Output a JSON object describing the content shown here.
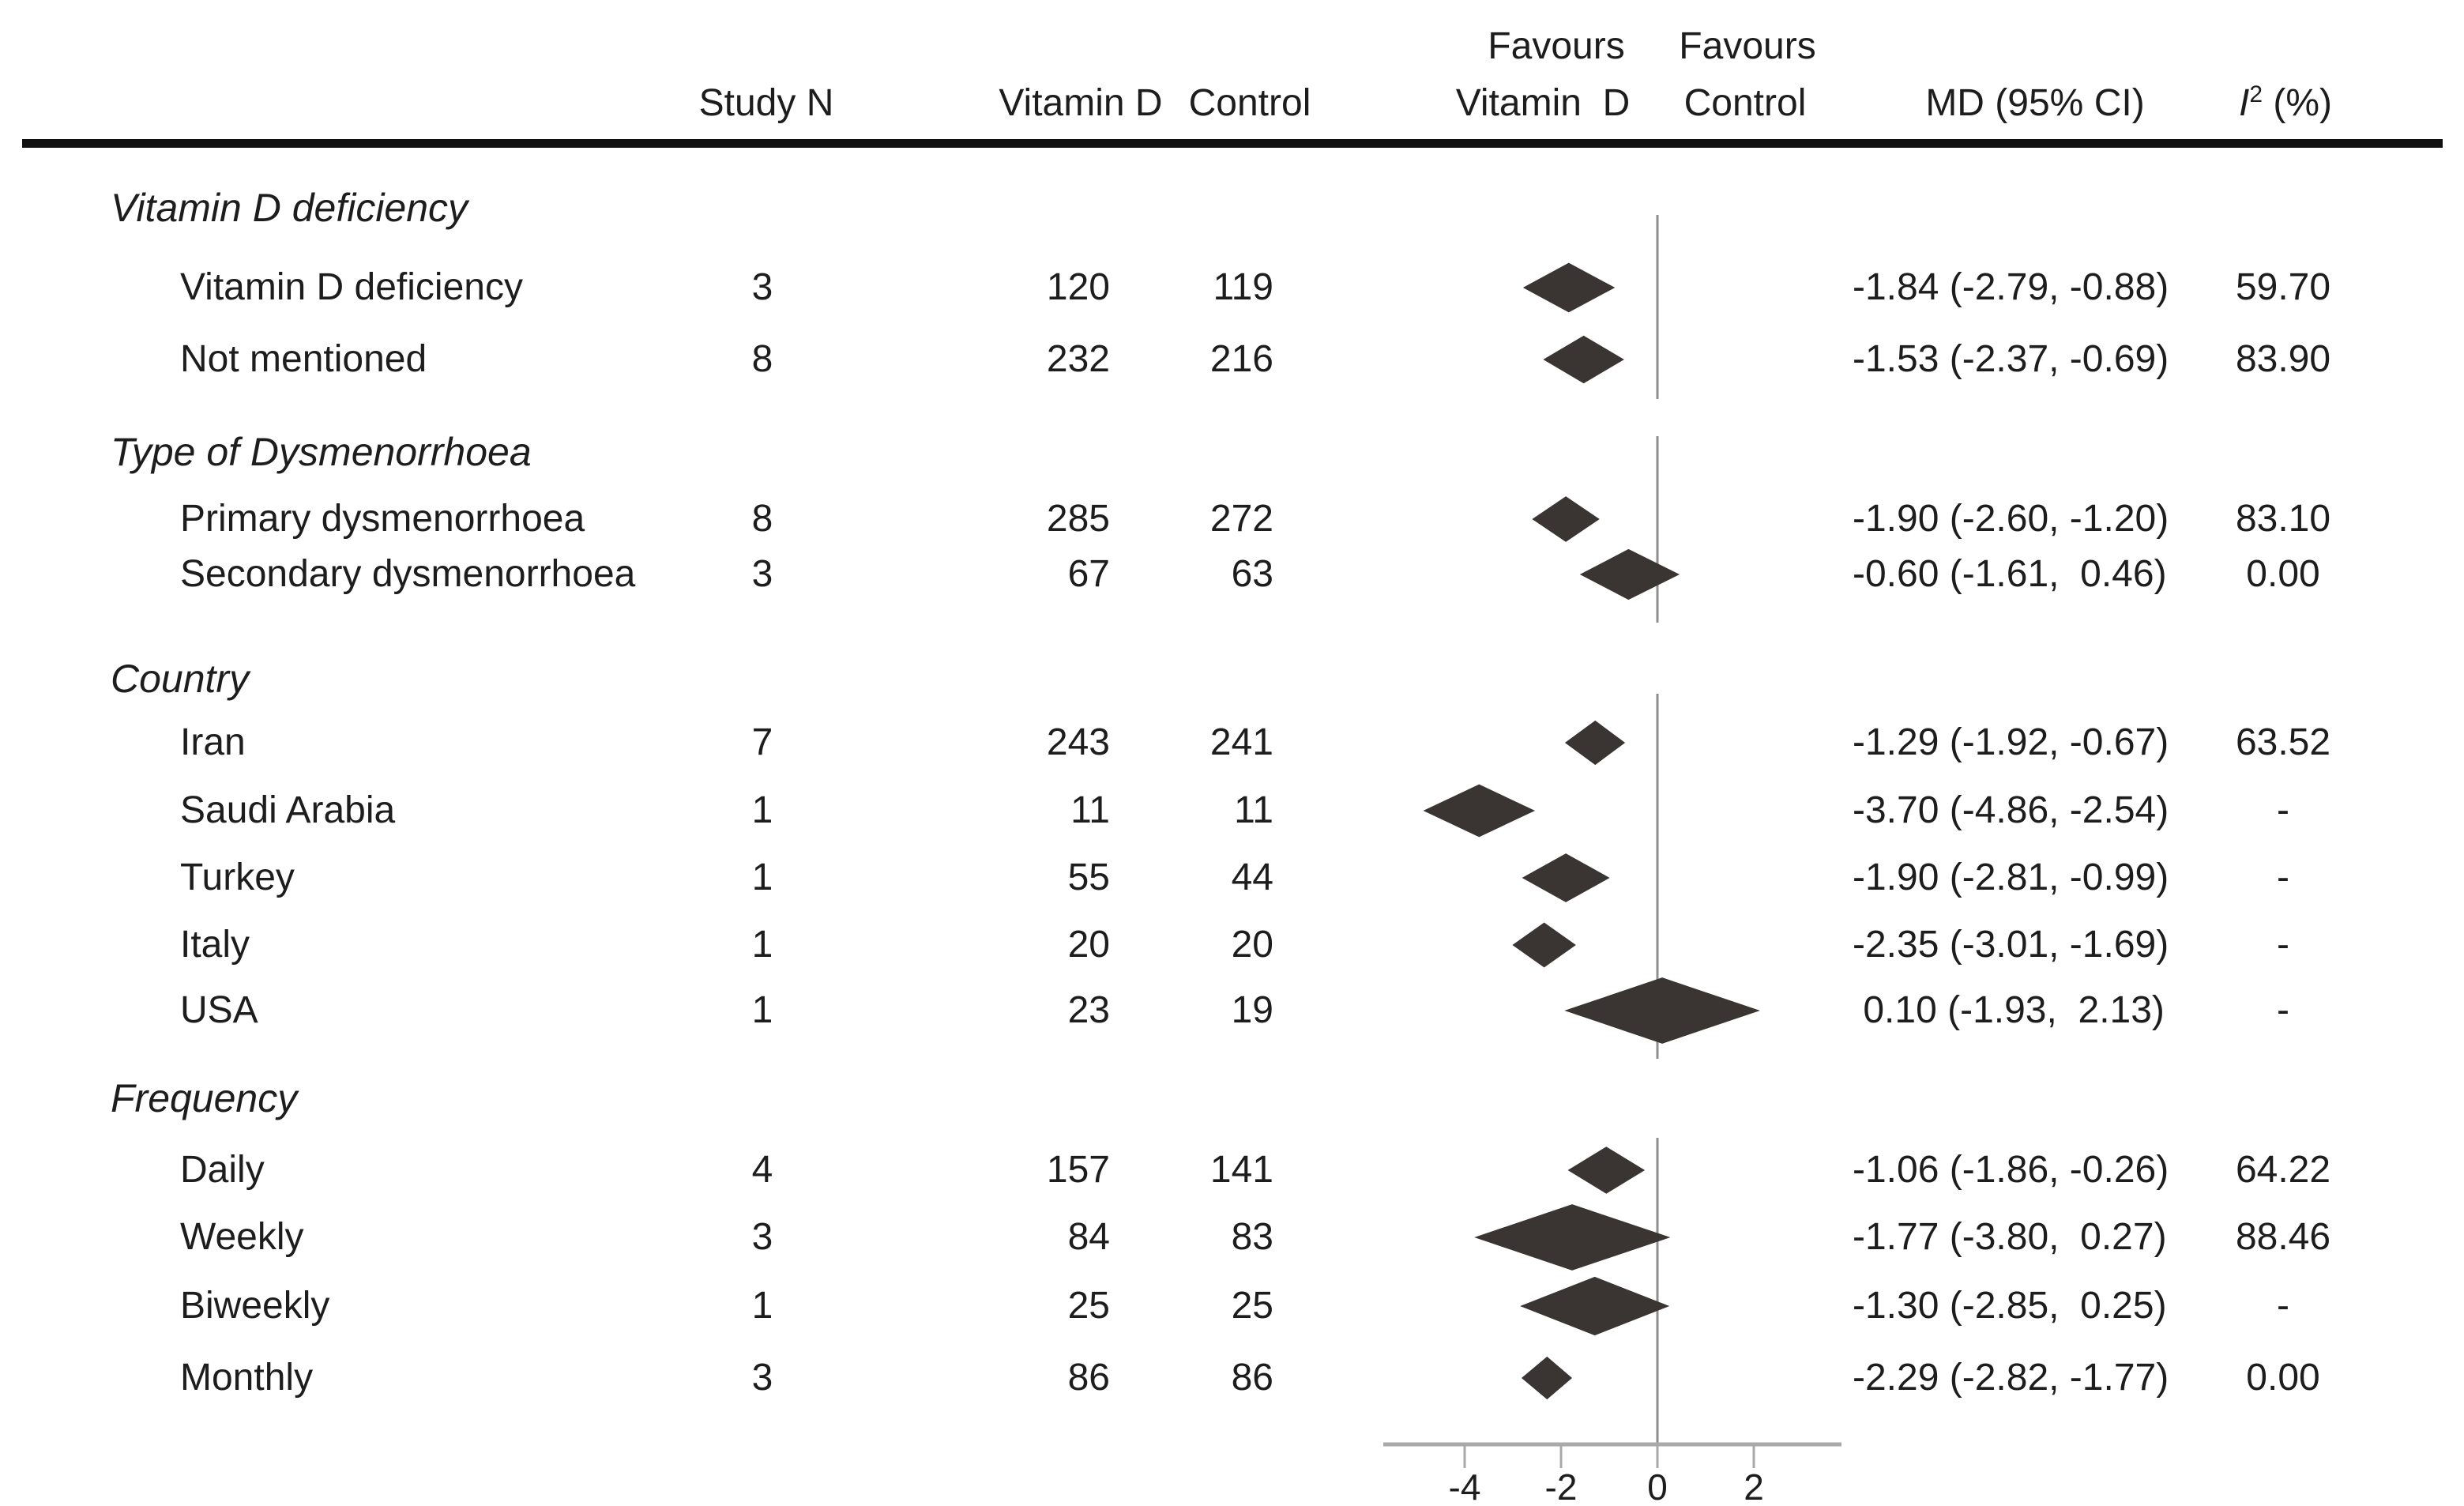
{
  "header": {
    "study_n": "Study N",
    "vitamin_d": "Vitamin D",
    "control": "Control",
    "favours_vitamin_d": [
      "Favours",
      "Vitamin  D"
    ],
    "favours_control": [
      "Favours",
      "Control"
    ],
    "md_ci": "MD (95% CI)",
    "i_squared_base": "I",
    "i_squared_sup": "2",
    "i_squared_unit": " (%)"
  },
  "chart_data": {
    "type": "forest",
    "title": "",
    "xlabel": "",
    "ylabel": "",
    "effect_measure": "MD (95% CI)",
    "x_ticks": [
      -4,
      -2,
      0,
      2
    ],
    "x_tick_labels": [
      "-4",
      "-2",
      "0",
      "2"
    ],
    "x_range": [
      -5.7,
      3.8
    ],
    "zero_line": 0,
    "grid": false,
    "marker_color": "#3a3533",
    "line_color": "#8f8f8f",
    "axis_color": "#a9a9a9",
    "sections": [
      {
        "heading": "Vitamin D deficiency",
        "rows": [
          {
            "label": "Vitamin D deficiency",
            "study_n": "3",
            "vitamin_d": "120",
            "control": "119",
            "md": -1.84,
            "ci": [
              -2.79,
              -0.88
            ],
            "md_text": "-1.84 (-2.79, -0.88)",
            "i2": "59.70"
          },
          {
            "label": "Not mentioned",
            "study_n": "8",
            "vitamin_d": "232",
            "control": "216",
            "md": -1.53,
            "ci": [
              -2.37,
              -0.69
            ],
            "md_text": "-1.53 (-2.37, -0.69)",
            "i2": "83.90"
          }
        ]
      },
      {
        "heading": "Type of Dysmenorrhoea",
        "rows": [
          {
            "label": "Primary dysmenorrhoea",
            "study_n": "8",
            "vitamin_d": "285",
            "control": "272",
            "md": -1.9,
            "ci": [
              -2.6,
              -1.2
            ],
            "md_text": "-1.90 (-2.60, -1.20)",
            "i2": "83.10"
          },
          {
            "label": "Secondary dysmenorrhoea",
            "study_n": "3",
            "vitamin_d": "67",
            "control": "63",
            "md": -0.6,
            "ci": [
              -1.61,
              0.46
            ],
            "md_text": "-0.60 (-1.61,  0.46)",
            "i2": "0.00"
          }
        ]
      },
      {
        "heading": "Country",
        "rows": [
          {
            "label": "Iran",
            "study_n": "7",
            "vitamin_d": "243",
            "control": "241",
            "md": -1.29,
            "ci": [
              -1.92,
              -0.67
            ],
            "md_text": "-1.29 (-1.92, -0.67)",
            "i2": "63.52"
          },
          {
            "label": "Saudi Arabia",
            "study_n": "1",
            "vitamin_d": "11",
            "control": "11",
            "md": -3.7,
            "ci": [
              -4.86,
              -2.54
            ],
            "md_text": "-3.70 (-4.86, -2.54)",
            "i2": "-"
          },
          {
            "label": "Turkey",
            "study_n": "1",
            "vitamin_d": "55",
            "control": "44",
            "md": -1.9,
            "ci": [
              -2.81,
              -0.99
            ],
            "md_text": "-1.90 (-2.81, -0.99)",
            "i2": "-"
          },
          {
            "label": "Italy",
            "study_n": "1",
            "vitamin_d": "20",
            "control": "20",
            "md": -2.35,
            "ci": [
              -3.01,
              -1.69
            ],
            "md_text": "-2.35 (-3.01, -1.69)",
            "i2": "-"
          },
          {
            "label": "USA",
            "study_n": "1",
            "vitamin_d": "23",
            "control": "19",
            "md": 0.1,
            "ci": [
              -1.93,
              2.13
            ],
            "md_text": " 0.10 (-1.93,  2.13)",
            "i2": "-"
          }
        ]
      },
      {
        "heading": "Frequency",
        "rows": [
          {
            "label": "Daily",
            "study_n": "4",
            "vitamin_d": "157",
            "control": "141",
            "md": -1.06,
            "ci": [
              -1.86,
              -0.26
            ],
            "md_text": "-1.06 (-1.86, -0.26)",
            "i2": "64.22"
          },
          {
            "label": "Weekly",
            "study_n": "3",
            "vitamin_d": "84",
            "control": "83",
            "md": -1.77,
            "ci": [
              -3.8,
              0.27
            ],
            "md_text": "-1.77 (-3.80,  0.27)",
            "i2": "88.46"
          },
          {
            "label": "Biweekly",
            "study_n": "1",
            "vitamin_d": "25",
            "control": "25",
            "md": -1.3,
            "ci": [
              -2.85,
              0.25
            ],
            "md_text": "-1.30 (-2.85,  0.25)",
            "i2": "-"
          },
          {
            "label": "Monthly",
            "study_n": "3",
            "vitamin_d": "86",
            "control": "86",
            "md": -2.29,
            "ci": [
              -2.82,
              -1.77
            ],
            "md_text": "-2.29 (-2.82, -1.77)",
            "i2": "0.00"
          }
        ]
      }
    ]
  }
}
